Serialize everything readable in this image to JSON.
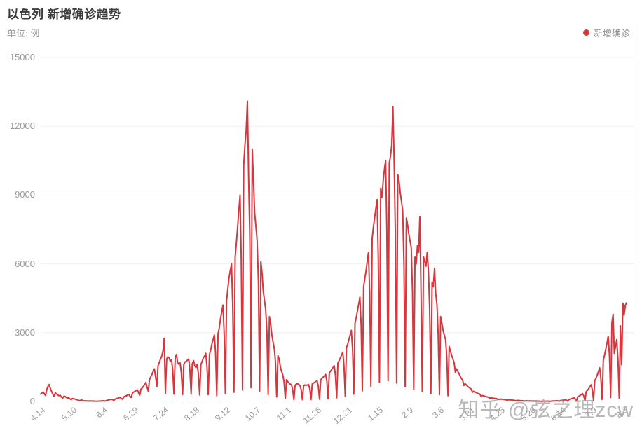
{
  "header": {
    "title": "以色列 新增确诊趋势",
    "unit_label": "单位: 例"
  },
  "legend": {
    "items": [
      {
        "label": "新增确诊",
        "color": "#d8353c"
      }
    ]
  },
  "watermark": {
    "text": "知乎 @弦之理zcw",
    "color": "#9e9e9e"
  },
  "chart_data": {
    "type": "line",
    "title": "以色列 新增确诊趋势",
    "unit": "例",
    "series_name": "新增确诊",
    "line_color": "#d8353c",
    "grid": "horizontal",
    "legend_position": "top-right",
    "ylim": [
      0,
      15000
    ],
    "y_ticks": [
      0,
      3000,
      6000,
      9000,
      12000,
      15000
    ],
    "x_tick_labels": [
      "4.14",
      "5.10",
      "6.4",
      "6.29",
      "7.24",
      "8.18",
      "9.12",
      "10.7",
      "11.1",
      "11.26",
      "12.21",
      "1.15",
      "2.9",
      "3.6",
      "3.31",
      "4.25",
      "5.20",
      "6.14",
      "7.9",
      "8.3"
    ],
    "x_tick_day_index": [
      0,
      26,
      51,
      76,
      101,
      126,
      151,
      176,
      201,
      226,
      251,
      276,
      301,
      326,
      351,
      376,
      401,
      426,
      451,
      476
    ],
    "x_resolution": "daily (day 0 = 4.14)",
    "values_daily": [
      320,
      360,
      410,
      340,
      260,
      520,
      660,
      740,
      560,
      430,
      310,
      220,
      380,
      330,
      280,
      250,
      270,
      190,
      140,
      230,
      220,
      170,
      150,
      160,
      110,
      80,
      130,
      120,
      100,
      90,
      70,
      50,
      35,
      60,
      55,
      32,
      28,
      30,
      20,
      14,
      24,
      22,
      18,
      16,
      17,
      12,
      9,
      15,
      16,
      20,
      25,
      32,
      24,
      18,
      45,
      58,
      72,
      85,
      95,
      70,
      52,
      110,
      125,
      140,
      160,
      175,
      130,
      95,
      200,
      225,
      245,
      280,
      310,
      230,
      170,
      360,
      410,
      430,
      470,
      510,
      380,
      280,
      540,
      590,
      660,
      740,
      830,
      620,
      450,
      950,
      1080,
      1180,
      1320,
      1420,
      1060,
      650,
      1560,
      1700,
      1850,
      1980,
      2200,
      2760,
      350,
      1850,
      1950,
      1900,
      1750,
      1820,
      1350,
      320,
      1900,
      2050,
      1700,
      1620,
      1680,
      1250,
      300,
      1600,
      1720,
      1750,
      1800,
      1850,
      1380,
      330,
      1650,
      1780,
      1550,
      1480,
      1620,
      1200,
      280,
      1600,
      1750,
      1900,
      1980,
      2100,
      1500,
      300,
      2050,
      2250,
      2500,
      2700,
      2900,
      2100,
      250,
      2950,
      3200,
      3600,
      3900,
      4200,
      3000,
      350,
      4400,
      4900,
      5400,
      5700,
      6000,
      4200,
      400,
      6300,
      6900,
      7600,
      8300,
      9000,
      6200,
      500,
      10300,
      11200,
      11800,
      13100,
      9800,
      7200,
      600,
      11000,
      9600,
      8200,
      7600,
      7000,
      5200,
      450,
      6100,
      5600,
      4800,
      4400,
      4000,
      3000,
      300,
      3700,
      3400,
      2900,
      2600,
      2300,
      1700,
      200,
      2000,
      1850,
      1500,
      1300,
      1150,
      850,
      120,
      950,
      870,
      800,
      760,
      730,
      540,
      80,
      700,
      760,
      780,
      740,
      700,
      520,
      75,
      680,
      720,
      700,
      720,
      740,
      550,
      80,
      760,
      800,
      830,
      870,
      900,
      660,
      95,
      950,
      1010,
      1060,
      1120,
      1180,
      860,
      120,
      1250,
      1320,
      1400,
      1480,
      1560,
      1140,
      160,
      1680,
      1780,
      1900,
      2020,
      2150,
      1560,
      220,
      2350,
      2500,
      2700,
      2900,
      3100,
      2250,
      320,
      3400,
      3650,
      3950,
      4250,
      4550,
      3300,
      460,
      5000,
      5350,
      5700,
      6100,
      6500,
      4700,
      650,
      7100,
      7600,
      8000,
      8400,
      8800,
      6300,
      850,
      9300,
      8900,
      9600,
      10100,
      10500,
      7500,
      900,
      10400,
      10700,
      11200,
      12850,
      10400,
      7300,
      800,
      9900,
      9600,
      9100,
      8700,
      8300,
      5900,
      650,
      8000,
      7700,
      7300,
      7000,
      6700,
      4700,
      520,
      6300,
      6000,
      6800,
      6500,
      8050,
      4600,
      420,
      6300,
      6100,
      5900,
      6500,
      5700,
      4000,
      350,
      5200,
      5000,
      5800,
      4700,
      4200,
      2900,
      300,
      3700,
      3400,
      3100,
      2900,
      2700,
      2000,
      250,
      2400,
      2200,
      2000,
      1850,
      1700,
      1280,
      1420,
      1320,
      1220,
      1100,
      1000,
      920,
      700,
      780,
      720,
      660,
      620,
      580,
      540,
      400,
      450,
      420,
      390,
      360,
      340,
      320,
      230,
      260,
      245,
      230,
      215,
      200,
      190,
      140,
      155,
      150,
      140,
      135,
      128,
      120,
      85,
      95,
      105,
      100,
      92,
      86,
      80,
      54,
      60,
      70,
      66,
      60,
      56,
      52,
      35,
      40,
      45,
      42,
      38,
      35,
      32,
      22,
      25,
      28,
      26,
      24,
      22,
      20,
      13,
      15,
      17,
      16,
      15,
      14,
      13,
      9,
      10,
      12,
      12,
      13,
      14,
      15,
      10,
      8,
      18,
      21,
      25,
      29,
      34,
      24,
      12,
      42,
      48,
      55,
      64,
      74,
      52,
      10,
      92,
      105,
      122,
      140,
      160,
      112,
      14,
      200,
      230,
      265,
      300,
      345,
      240,
      22,
      430,
      490,
      560,
      640,
      730,
      510,
      45,
      900,
      1020,
      1150,
      1300,
      1470,
      1020,
      90,
      1800,
      2030,
      2280,
      2550,
      2850,
      1980,
      170,
      3450,
      3800,
      2100,
      2400,
      2700,
      1800,
      150,
      3300,
      1600,
      4290,
      3770,
      4200,
      4300
    ]
  }
}
